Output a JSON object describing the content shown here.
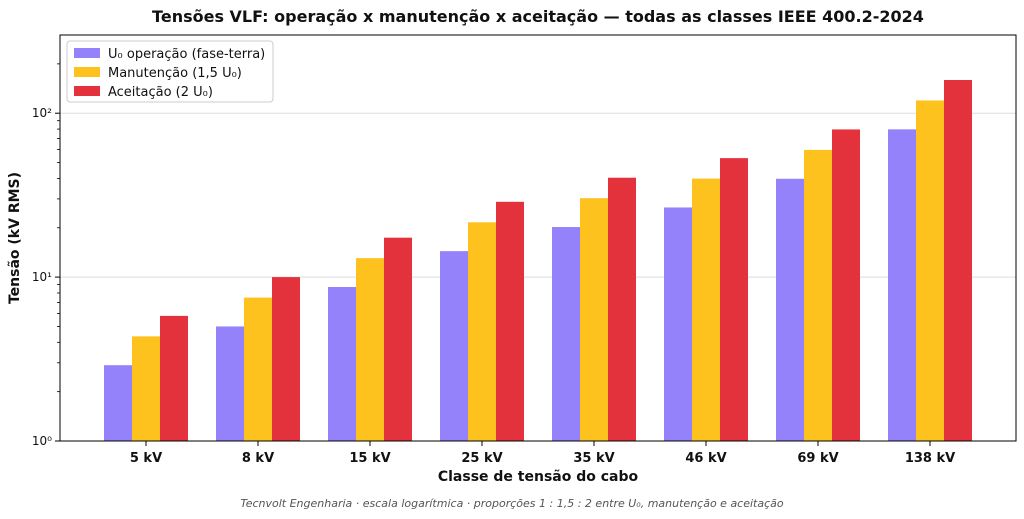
{
  "chart_data": {
    "type": "bar",
    "title": "Tensões VLF: operação x manutenção x aceitação — todas as classes IEEE 400.2-2024",
    "xlabel": "Classe de tensão do cabo",
    "ylabel": "Tensão (kV RMS)",
    "yscale": "log",
    "ylim": [
      1,
      300
    ],
    "grid": "horizontal",
    "legend_position": "top-left",
    "categories": [
      "5 kV",
      "8 kV",
      "15 kV",
      "25 kV",
      "35 kV",
      "46 kV",
      "69 kV",
      "138 kV"
    ],
    "series": [
      {
        "name": "U₀ operação (fase-terra)",
        "color": "#9482fb",
        "values": [
          2.9,
          5.0,
          8.7,
          14.4,
          20.2,
          26.6,
          39.8,
          79.7
        ]
      },
      {
        "name": "Manutenção (1,5 U₀)",
        "color": "#fec21f",
        "values": [
          4.35,
          7.5,
          13.05,
          21.6,
          30.3,
          39.9,
          59.7,
          119.6
        ]
      },
      {
        "name": "Aceitação (2 U₀)",
        "color": "#e3323c",
        "values": [
          5.8,
          10.0,
          17.4,
          28.8,
          40.4,
          53.2,
          79.6,
          159.4
        ]
      }
    ],
    "yticks": [
      {
        "value": 1,
        "label": "10⁰"
      },
      {
        "value": 10,
        "label": "10¹"
      },
      {
        "value": 100,
        "label": "10²"
      }
    ]
  },
  "caption": "Tecnvolt Engenharia · escala logarítmica · proporções 1 : 1,5 : 2 entre U₀, manutenção e aceitação"
}
